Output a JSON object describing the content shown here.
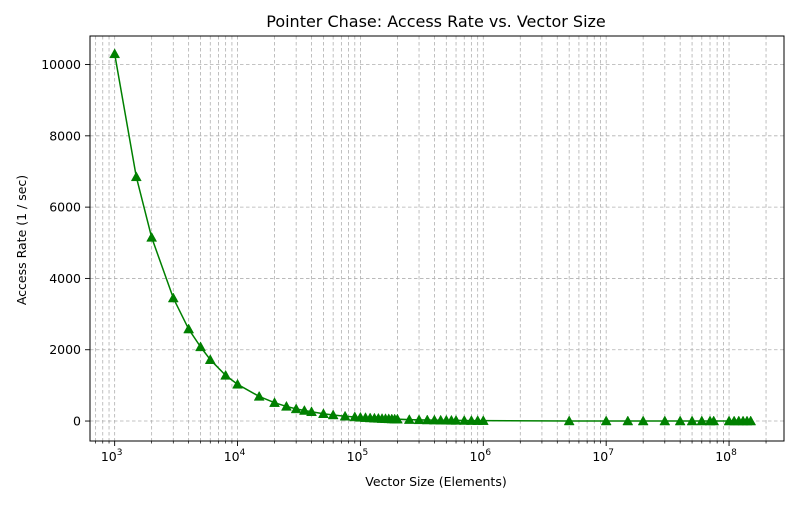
{
  "chart_data": {
    "type": "line",
    "title": "Pointer Chase: Access Rate vs. Vector Size",
    "xlabel": "Vector Size (Elements)",
    "ylabel": "Access Rate (1 / sec)",
    "xscale": "log",
    "xlim": [
      630,
      280000000
    ],
    "ylim": [
      -560,
      10800
    ],
    "grid": "both-major-and-minor-dashed",
    "x_ticks": [
      {
        "base": "10",
        "exp": "3",
        "value": 1000
      },
      {
        "base": "10",
        "exp": "4",
        "value": 10000
      },
      {
        "base": "10",
        "exp": "5",
        "value": 100000
      },
      {
        "base": "10",
        "exp": "6",
        "value": 1000000
      },
      {
        "base": "10",
        "exp": "7",
        "value": 10000000
      },
      {
        "base": "10",
        "exp": "8",
        "value": 100000000
      }
    ],
    "y_ticks": [
      "0",
      "2000",
      "4000",
      "6000",
      "8000",
      "10000"
    ],
    "line_color": "#008000",
    "marker": "triangle-up",
    "series": [
      {
        "x": [
          1000,
          1500,
          2000,
          3000,
          4000,
          5000,
          6000,
          8000,
          10000,
          15000,
          20000,
          25000,
          30000,
          35000,
          40000,
          50000,
          60000,
          75000,
          90000,
          100000,
          110000,
          120000,
          130000,
          140000,
          150000,
          160000,
          170000,
          180000,
          190000,
          200000,
          250000,
          300000,
          350000,
          400000,
          450000,
          500000,
          550000,
          600000,
          700000,
          800000,
          900000,
          1000000,
          5000000,
          10000000,
          15000000,
          20000000,
          30000000,
          40000000,
          50000000,
          60000000,
          70000000,
          75000000,
          100000000,
          110000000,
          120000000,
          130000000,
          140000000,
          150000000
        ],
        "y": [
          10300,
          6850,
          5150,
          3450,
          2580,
          2080,
          1720,
          1280,
          1030,
          690,
          515,
          410,
          340,
          295,
          260,
          205,
          170,
          135,
          115,
          103,
          94,
          86,
          79,
          74,
          69,
          65,
          61,
          57,
          54,
          52,
          41,
          34,
          29,
          26,
          23,
          21,
          19,
          17,
          15,
          13,
          11,
          10,
          2,
          1,
          0.7,
          0.5,
          0.3,
          0.26,
          0.2,
          0.17,
          0.15,
          0.14,
          0.1,
          0.09,
          0.09,
          0.08,
          0.07,
          0.07
        ]
      }
    ]
  }
}
